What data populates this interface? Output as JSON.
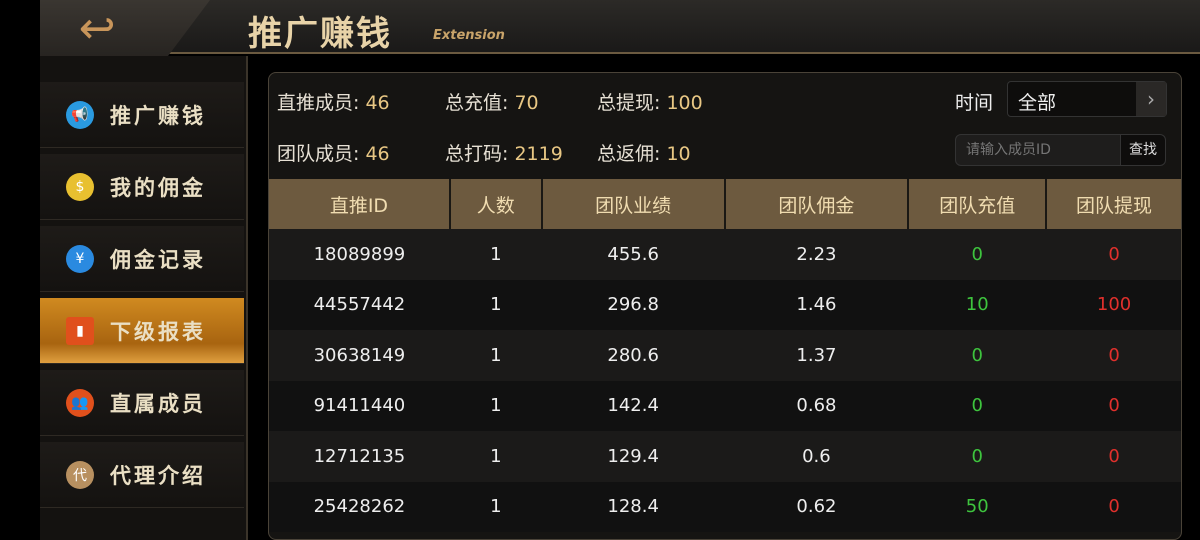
{
  "header": {
    "title": "推广赚钱",
    "subtitle": "Extension",
    "back_icon": "back-arrow-icon"
  },
  "sidebar": {
    "items": [
      {
        "label": "推广赚钱",
        "icon": "megaphone-icon",
        "color": "#2a9ae0",
        "active": false
      },
      {
        "label": "我的佣金",
        "icon": "money-bag-icon",
        "color": "#e8c030",
        "active": false
      },
      {
        "label": "佣金记录",
        "icon": "record-icon",
        "color": "#2a8ae0",
        "active": false
      },
      {
        "label": "下级报表",
        "icon": "bar-chart-icon",
        "color": "#e0501c",
        "active": true
      },
      {
        "label": "直属成员",
        "icon": "users-icon",
        "color": "#e0501c",
        "active": false
      },
      {
        "label": "代理介绍",
        "icon": "agent-icon",
        "color": "#b89060",
        "glyph": "代",
        "active": false
      }
    ]
  },
  "stats": {
    "direct_members_label": "直推成员: ",
    "direct_members": "46",
    "total_recharge_label": "总充值: ",
    "total_recharge": "70",
    "total_withdraw_label": "总提现: ",
    "total_withdraw": "100",
    "team_members_label": "团队成员: ",
    "team_members": "46",
    "total_bet_label": "总打码: ",
    "total_bet": "2119",
    "total_rebate_label": "总返佣: ",
    "total_rebate": "10"
  },
  "filter": {
    "time_label": "时间",
    "time_value": "全部",
    "search_placeholder": "请输入成员ID",
    "search_button": "查找"
  },
  "table": {
    "headers": [
      "直推ID",
      "人数",
      "团队业绩",
      "团队佣金",
      "团队充值",
      "团队提现"
    ],
    "rows": [
      [
        "18089899",
        "1",
        "455.6",
        "2.23",
        "0",
        "0"
      ],
      [
        "44557442",
        "1",
        "296.8",
        "1.46",
        "10",
        "100"
      ],
      [
        "30638149",
        "1",
        "280.6",
        "1.37",
        "0",
        "0"
      ],
      [
        "91411440",
        "1",
        "142.4",
        "0.68",
        "0",
        "0"
      ],
      [
        "12712135",
        "1",
        "129.4",
        "0.6",
        "0",
        "0"
      ],
      [
        "25428262",
        "1",
        "128.4",
        "0.62",
        "50",
        "0"
      ]
    ]
  },
  "colors": {
    "recharge": "#3ec43e",
    "withdraw": "#e0302c",
    "accent": "#d08a20"
  }
}
